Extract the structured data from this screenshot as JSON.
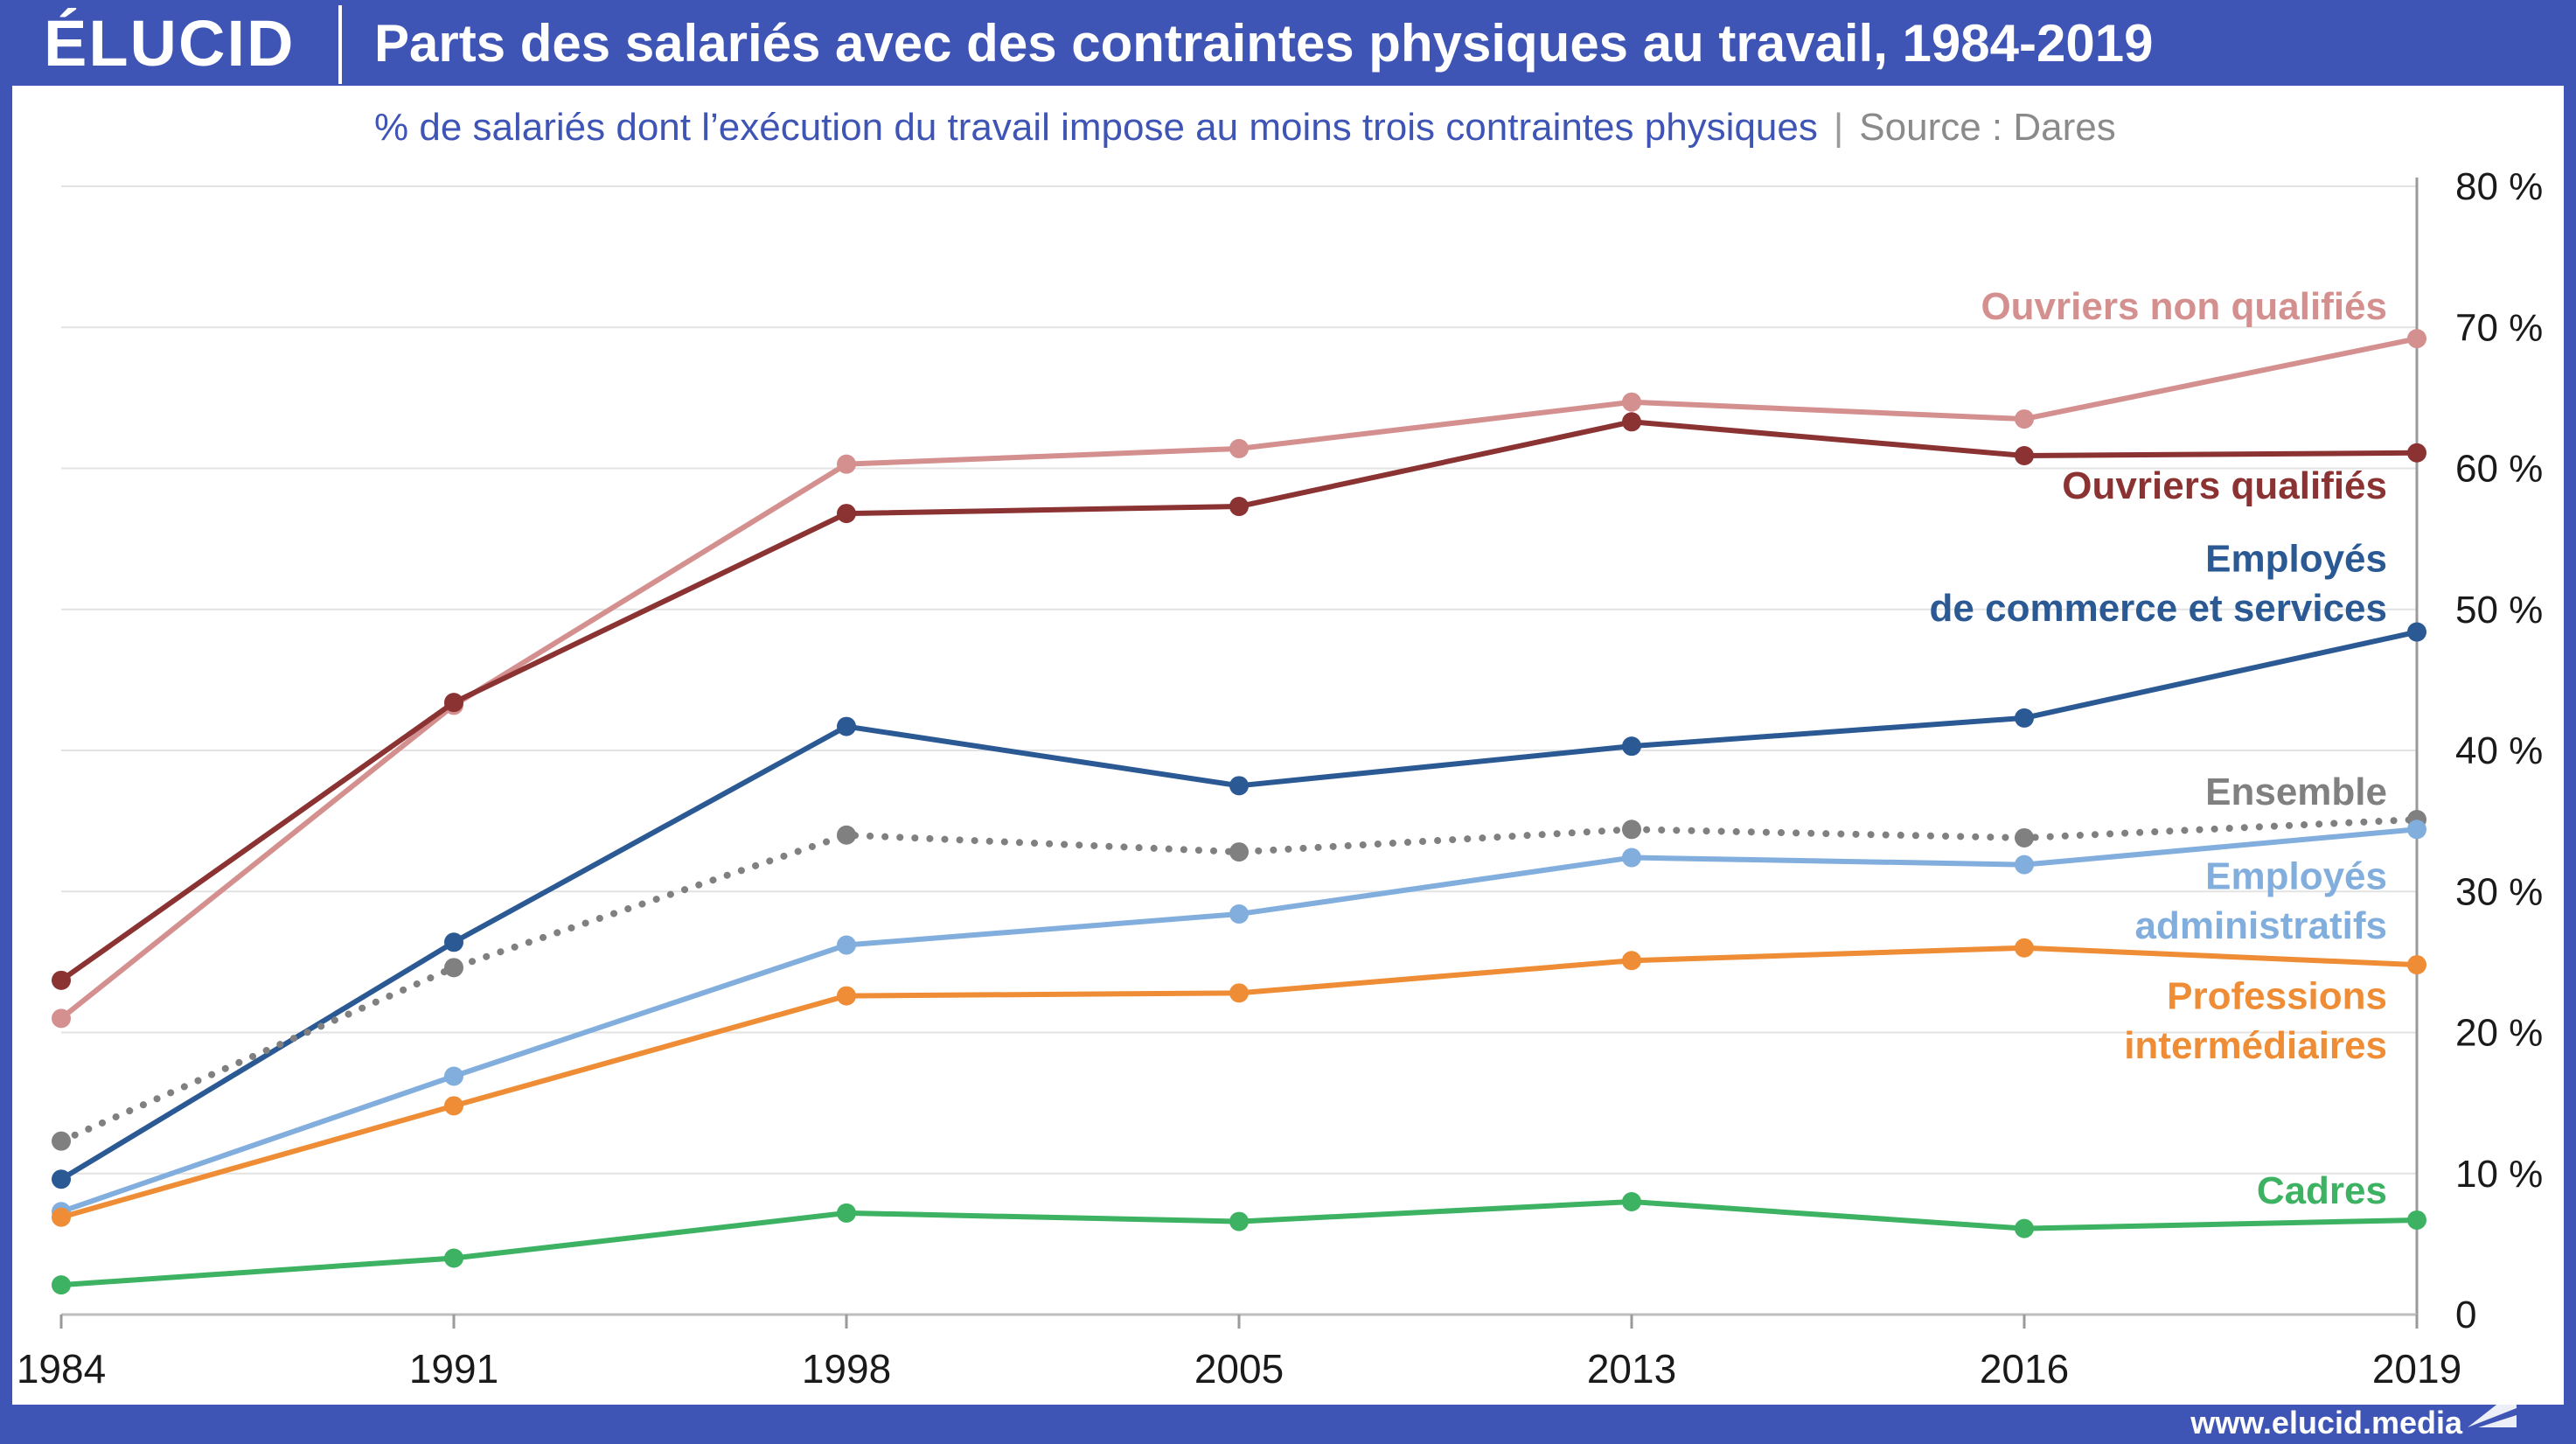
{
  "header": {
    "logo": "ÉLUCID",
    "title": "Parts des salariés avec des contraintes physiques au travail, 1984-2019"
  },
  "subtitle": {
    "text": "% de salariés dont l’exécution du travail impose au moins trois contraintes physiques",
    "separator": "|",
    "source": "Source : Dares"
  },
  "footer": {
    "url": "www.elucid.media"
  },
  "chart_data": {
    "type": "line",
    "title": "Parts des salariés avec des contraintes physiques au travail, 1984-2019",
    "subtitle": "% de salariés dont l’exécution du travail impose au moins trois contraintes physiques",
    "x": [
      "1984",
      "1991",
      "1998",
      "2005",
      "2013",
      "2016",
      "2019"
    ],
    "y_ticks": [
      "0",
      "10 %",
      "20 %",
      "30 %",
      "40 %",
      "50 %",
      "60 %",
      "70 %",
      "80 %"
    ],
    "ylim": [
      0,
      80
    ],
    "grid": "horizontal",
    "y_axis_side": "right",
    "series": [
      {
        "name": "Ouvriers non qualifiés",
        "label_lines": [
          "Ouvriers non qualifiés"
        ],
        "color": "#d4908f",
        "style": "solid",
        "values": [
          21.0,
          43.2,
          60.3,
          61.4,
          64.7,
          63.5,
          69.2
        ]
      },
      {
        "name": "Ouvriers qualifiés",
        "label_lines": [
          "Ouvriers qualifiés"
        ],
        "color": "#8b3232",
        "style": "solid",
        "values": [
          23.7,
          43.4,
          56.8,
          57.3,
          63.3,
          60.9,
          61.1
        ]
      },
      {
        "name": "Employés de commerce et services",
        "label_lines": [
          "Employés",
          "de commerce et services"
        ],
        "color": "#2b5994",
        "style": "solid",
        "values": [
          9.6,
          26.4,
          41.7,
          37.5,
          40.3,
          42.3,
          48.4
        ]
      },
      {
        "name": "Ensemble",
        "label_lines": [
          "Ensemble"
        ],
        "color": "#808080",
        "style": "dotted",
        "values": [
          12.3,
          24.6,
          34.0,
          32.8,
          34.4,
          33.8,
          35.1
        ]
      },
      {
        "name": "Employés administratifs",
        "label_lines": [
          "Employés",
          "administratifs"
        ],
        "color": "#82aedd",
        "style": "solid",
        "values": [
          7.3,
          16.9,
          26.2,
          28.4,
          32.4,
          31.9,
          34.4
        ]
      },
      {
        "name": "Professions intermédiaires",
        "label_lines": [
          "Professions",
          "intermédiaires"
        ],
        "color": "#ee8d35",
        "style": "solid",
        "values": [
          6.9,
          14.8,
          22.6,
          22.8,
          25.1,
          26.0,
          24.8
        ]
      },
      {
        "name": "Cadres",
        "label_lines": [
          "Cadres"
        ],
        "color": "#3db262",
        "style": "solid",
        "values": [
          2.1,
          4.0,
          7.2,
          6.6,
          8.0,
          6.1,
          6.7
        ]
      }
    ]
  }
}
